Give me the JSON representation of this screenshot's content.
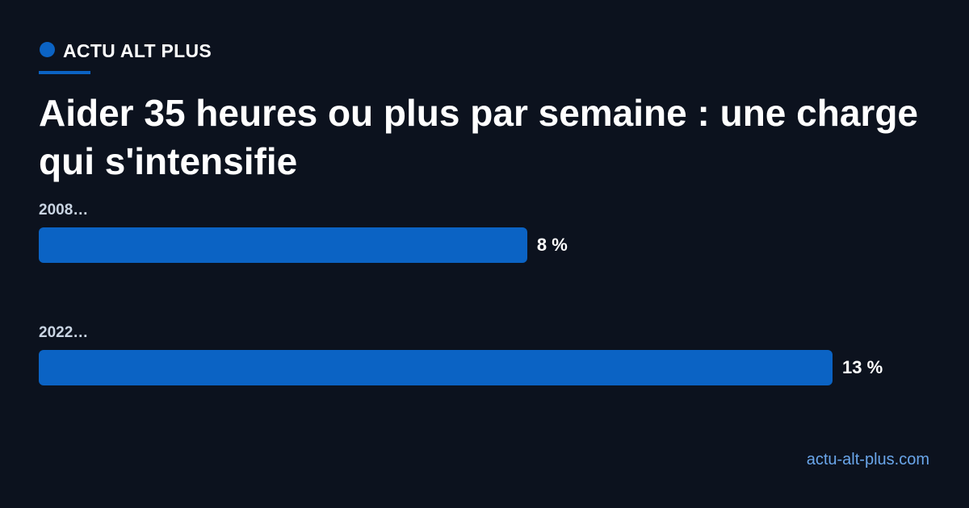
{
  "brand": "ACTU ALT PLUS",
  "site": "actu-alt-plus.com",
  "chart_data": {
    "type": "bar",
    "orientation": "horizontal",
    "title": "Aider 35 heures ou plus par semaine : une charge qui s'intensifie",
    "categories": [
      "2008…",
      "2022…"
    ],
    "values": [
      8,
      13
    ],
    "value_labels": [
      "8 %",
      "13 %"
    ],
    "color": "#0b63c4"
  }
}
